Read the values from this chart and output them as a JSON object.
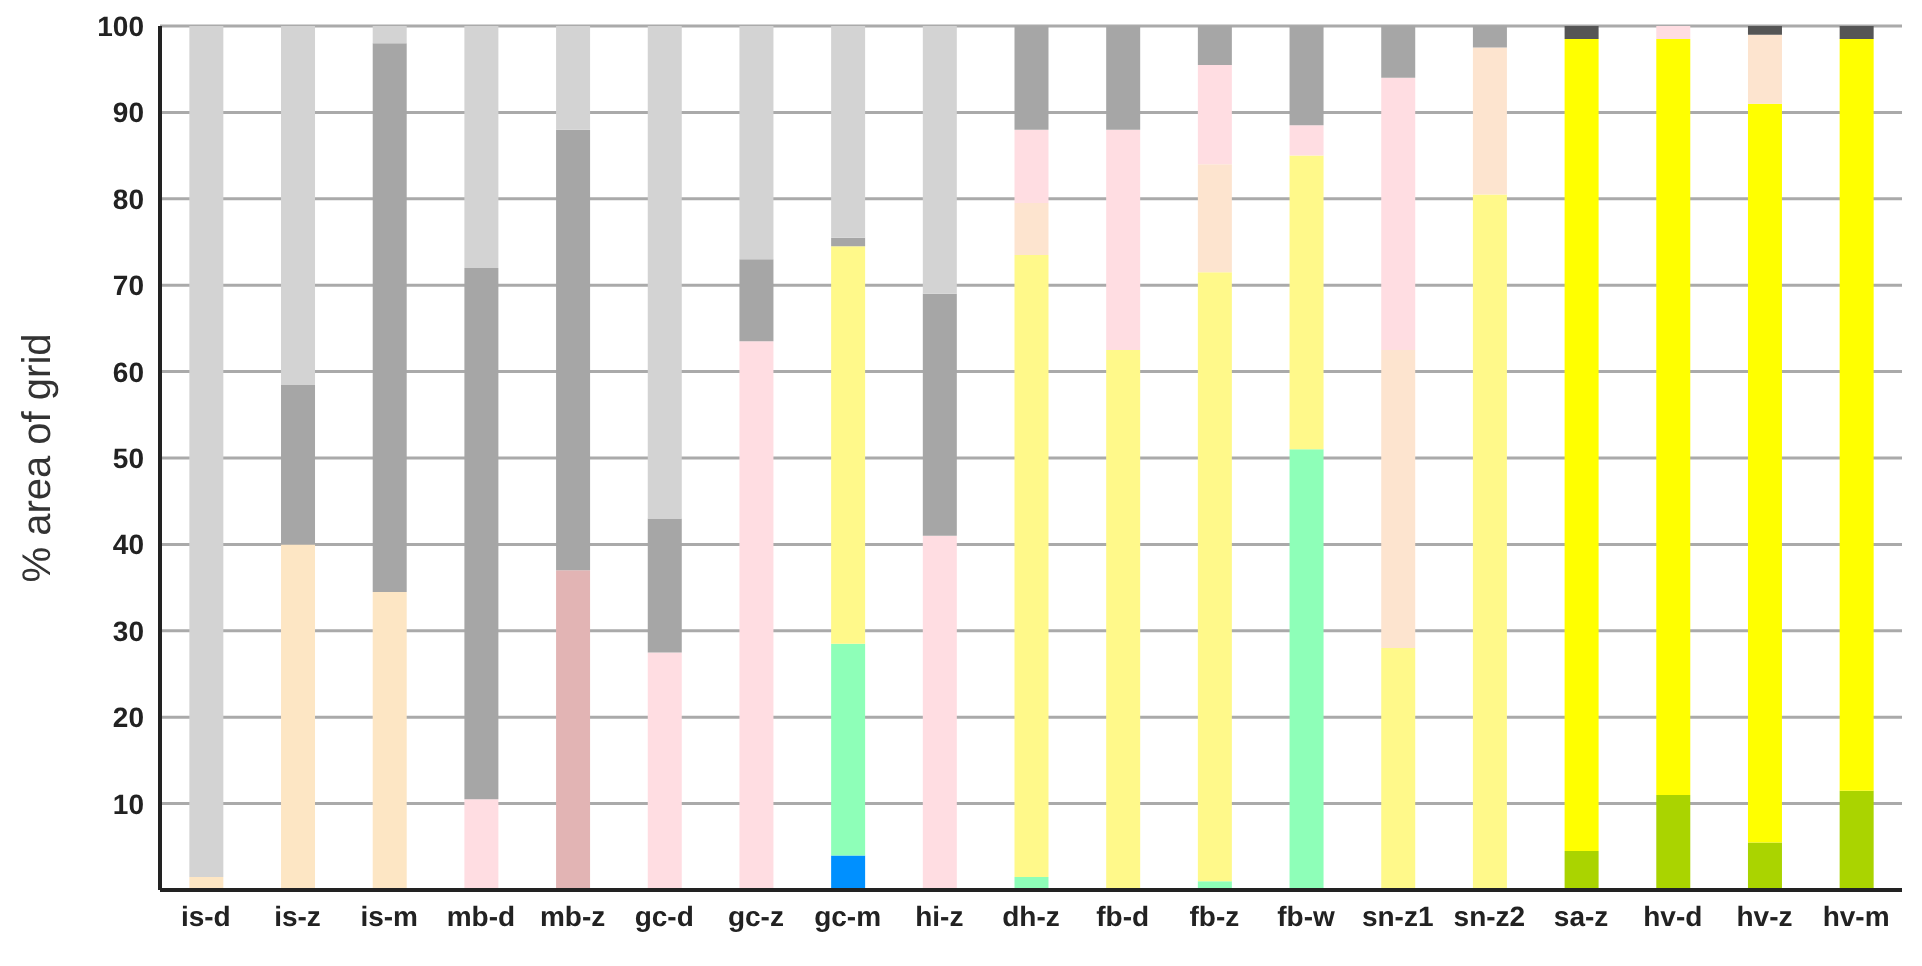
{
  "chart_data": {
    "type": "bar",
    "stacked": true,
    "ylabel": "% area of grid",
    "ylim": [
      0,
      100
    ],
    "yticks": [
      10,
      20,
      30,
      40,
      50,
      60,
      70,
      80,
      90,
      100
    ],
    "grid": "y",
    "legend": false,
    "categories": [
      "is-d",
      "is-z",
      "is-m",
      "mb-d",
      "mb-z",
      "gc-d",
      "gc-z",
      "gc-m",
      "hi-z",
      "dh-z",
      "fb-d",
      "fb-z",
      "fb-w",
      "sn-z1",
      "sn-z2",
      "sa-z",
      "hv-d",
      "hv-z",
      "hv-m"
    ],
    "series": [
      {
        "color": "#0090ff",
        "values": [
          null,
          null,
          null,
          null,
          null,
          null,
          null,
          4,
          null,
          null,
          null,
          null,
          null,
          null,
          null,
          null,
          null,
          null,
          null
        ]
      },
      {
        "color": "#8effb8",
        "values": [
          null,
          null,
          null,
          null,
          null,
          null,
          null,
          24.5,
          null,
          1.5,
          null,
          1,
          51,
          null,
          null,
          null,
          null,
          null,
          null
        ]
      },
      {
        "color": "#aad400",
        "values": [
          null,
          null,
          null,
          null,
          null,
          null,
          null,
          null,
          null,
          null,
          null,
          null,
          null,
          null,
          null,
          4.5,
          11,
          5.5,
          11.5
        ]
      },
      {
        "color": "#fde6c4",
        "values": [
          1.5,
          40,
          34.5,
          null,
          null,
          null,
          null,
          null,
          null,
          null,
          null,
          null,
          null,
          null,
          null,
          null,
          null,
          null,
          null
        ]
      },
      {
        "color": "#fff98a",
        "values": [
          null,
          null,
          null,
          null,
          null,
          null,
          null,
          46,
          null,
          72,
          62.5,
          70.5,
          34,
          28,
          80.5,
          null,
          null,
          null,
          null
        ]
      },
      {
        "color": "#ffff00",
        "values": [
          null,
          null,
          null,
          null,
          null,
          null,
          null,
          null,
          null,
          null,
          null,
          null,
          null,
          null,
          null,
          94,
          87.5,
          85.5,
          87
        ]
      },
      {
        "color": "#fde4cf",
        "values": [
          null,
          null,
          null,
          null,
          null,
          null,
          null,
          null,
          null,
          6,
          null,
          12.5,
          null,
          34.5,
          17,
          null,
          null,
          8,
          null
        ]
      },
      {
        "color": "#ffdde2",
        "values": [
          null,
          null,
          null,
          10.5,
          null,
          27.5,
          63.5,
          null,
          41,
          8.5,
          25.5,
          11.5,
          3.5,
          31.5,
          null,
          null,
          1.5,
          null,
          null
        ]
      },
      {
        "color": "#e2b4b4",
        "values": [
          null,
          null,
          null,
          null,
          37,
          null,
          null,
          null,
          null,
          null,
          null,
          null,
          null,
          null,
          null,
          null,
          null,
          null,
          null
        ]
      },
      {
        "color": "#a6a6a6",
        "values": [
          null,
          18.5,
          63.5,
          61.5,
          51,
          15.5,
          9.5,
          1,
          28,
          12,
          12,
          4.5,
          11.5,
          6,
          2.5,
          null,
          null,
          null,
          null
        ]
      },
      {
        "color": "#d3d3d3",
        "values": [
          98.5,
          41.5,
          2,
          28,
          12,
          57,
          27,
          24.5,
          31,
          null,
          null,
          null,
          null,
          null,
          null,
          null,
          null,
          null,
          null
        ]
      },
      {
        "color": "#555555",
        "values": [
          null,
          null,
          null,
          null,
          null,
          null,
          null,
          null,
          null,
          null,
          null,
          null,
          null,
          null,
          null,
          1.5,
          null,
          1,
          1.5
        ]
      }
    ]
  }
}
